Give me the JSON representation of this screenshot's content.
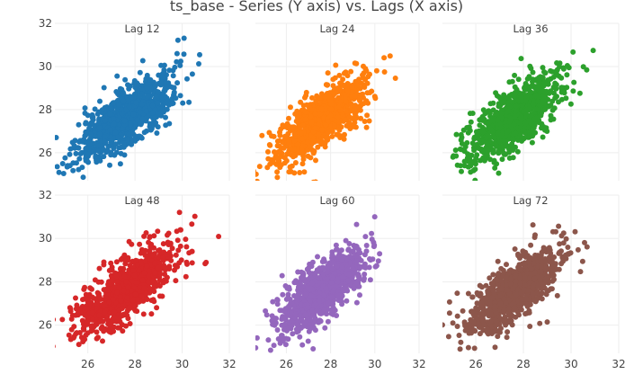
{
  "title": "ts_base - Series (Y axis) vs. Lags (X axis)",
  "chart_data": {
    "type": "scatter",
    "title": "ts_base - Series (Y axis) vs. Lags (X axis)",
    "xlabel": "",
    "ylabel": "",
    "xlim": [
      24.6,
      32.0
    ],
    "ylim": [
      24.7,
      32.0
    ],
    "x_ticks": [
      26,
      28,
      30,
      32
    ],
    "y_ticks": [
      26,
      28,
      30,
      32
    ],
    "grid": true,
    "legend": "none",
    "panels": [
      {
        "label": "Lag 12",
        "color": "#1f77b4",
        "points": 900,
        "correlation": 0.74
      },
      {
        "label": "Lag 24",
        "color": "#ff7f0e",
        "points": 900,
        "correlation": 0.74
      },
      {
        "label": "Lag 36",
        "color": "#2ca02c",
        "points": 900,
        "correlation": 0.74
      },
      {
        "label": "Lag 48",
        "color": "#d62728",
        "points": 900,
        "correlation": 0.74
      },
      {
        "label": "Lag 60",
        "color": "#9467bd",
        "points": 900,
        "correlation": 0.74
      },
      {
        "label": "Lag 72",
        "color": "#8c564b",
        "points": 900,
        "correlation": 0.74
      }
    ]
  }
}
